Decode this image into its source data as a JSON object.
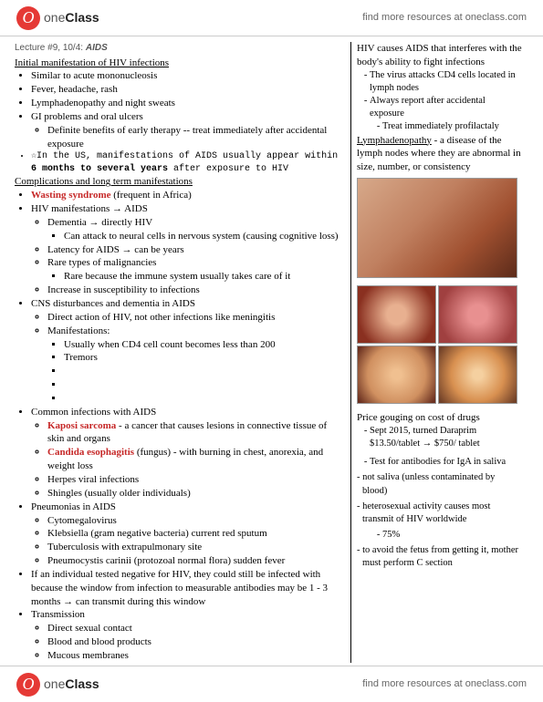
{
  "topbar": {
    "logo_letter": "O",
    "logo_prefix": "one",
    "logo_bold": "Class",
    "right_text": "find more resources at oneclass.com"
  },
  "lecture": {
    "prefix": "Lecture #9, 10/4:",
    "topic": "AIDS"
  },
  "left": {
    "h1": "Initial manifestation of HIV infections",
    "b1": "Similar to acute mononucleosis",
    "b2": "Fever, headache, rash",
    "b3": "Lymphadenopathy and night sweats",
    "b4": "GI problems and oral ulcers",
    "b4a": "Definite benefits of early therapy -- treat immediately after accidental exposure",
    "b5_pre": "☆In the US, manifestations of AIDS usually appear within ",
    "b5_bold": "6 months to several years",
    "b5_post": " after exposure to HIV",
    "h2": "Complications and long term manifestations",
    "c1_red": "Wasting syndrome",
    "c1_post": " (frequent in Africa)",
    "c2": "HIV manifestations → AIDS",
    "c2a": "Dementia → directly HIV",
    "c2a1": "Can attack to neural cells in nervous system (causing cognitive loss)",
    "c2b": "Latency for AIDS → can be years",
    "c2c": "Rare types of malignancies",
    "c2c1": "Rare because the immune system usually takes care of it",
    "c2d": "Increase in susceptibility to infections",
    "c3": "CNS disturbances and dementia in AIDS",
    "c3a": "Direct action of HIV, not other infections like meningitis",
    "c3b": "Manifestations:",
    "c3b1": "Usually when CD4 cell count becomes less than 200",
    "c3b2": "Tremors",
    "c4": "Common infections with AIDS",
    "c4a_red": "Kaposi sarcoma",
    "c4a_post": " - a cancer that causes lesions in connective tissue of skin and organs",
    "c4b_red": "Candida esophagitis",
    "c4b_post": " (fungus) - with burning in chest, anorexia, and weight loss",
    "c4c": "Herpes viral infections",
    "c4d": "Shingles (usually older individuals)",
    "c5": "Pneumonias in AIDS",
    "c5a": "Cytomegalovirus",
    "c5b": "Klebsiella (gram negative bacteria) current red sputum",
    "c5c": "Tuberculosis with extrapulmonary site",
    "c5d": "Pneumocystis carinii (protozoal normal flora) sudden fever",
    "c6": "If an individual tested negative for HIV, they could still be infected with because the window from infection to measurable antibodies may be 1 - 3 months → can transmit during this window",
    "c7": "Transmission",
    "c7a": "Direct sexual contact",
    "c7b": "Blood and blood products",
    "c7c": "Mucous membranes"
  },
  "right": {
    "p1": "HIV causes AIDS that interferes with the body's ability to fight infections",
    "p1a": "The virus attacks CD4 cells located in lymph nodes",
    "p1b": "Always report after accidental exposure",
    "p1b1": "Treat immediately profilactaly",
    "p2_u": "Lymphadenopathy",
    "p2_post": " - a disease of the lymph nodes where they are abnormal in size, number, or consistency",
    "p3": "Price gouging on cost of drugs",
    "p3a": "Sept 2015, turned Daraprim $13.50/tablet → $750/ tablet",
    "p3b": "Test for antibodies for IgA in saliva",
    "d1": "- not saliva (unless contaminated by blood)",
    "d2": "- heterosexual activity causes most transmit of HIV worldwide",
    "d2a": "75%",
    "d3": "- to avoid the fetus from getting it, mother must perform C section"
  }
}
